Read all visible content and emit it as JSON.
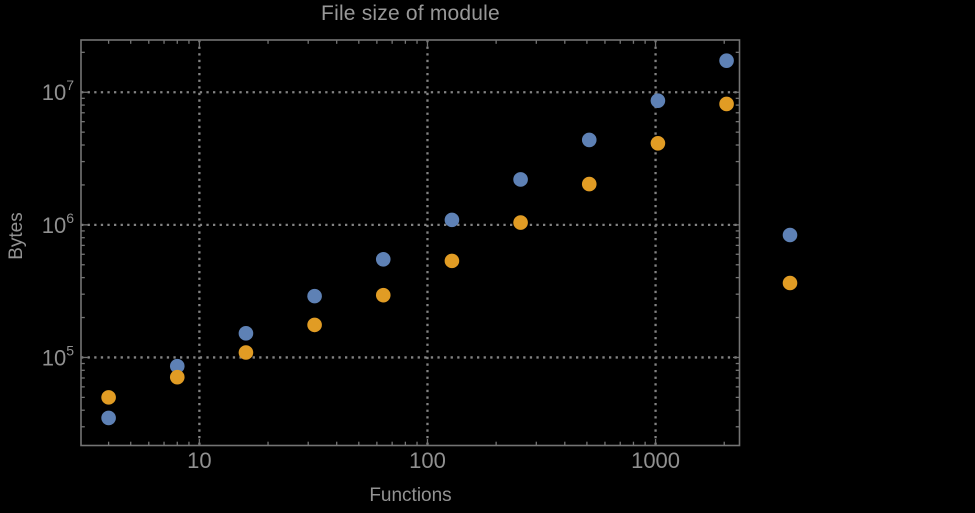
{
  "title": "File size of module",
  "axes": {
    "x_label": "Functions",
    "y_label": "Bytes"
  },
  "colors": {
    "background": "#000000",
    "frame": "#747474",
    "ticks": "#747474",
    "grid": "#828282",
    "tick_text": "#909090",
    "title_text": "#989898",
    "series_blue": "#5E81B5",
    "series_orange": "#E19C24"
  },
  "chart_data": {
    "type": "scatter",
    "title": "File size of module",
    "xlabel": "Functions",
    "ylabel": "Bytes",
    "x_scale": "log",
    "y_scale": "log",
    "xlim_log": [
      0.481,
      3.368
    ],
    "ylim_log": [
      4.336,
      7.394
    ],
    "grid": "dotted lines at major ticks only",
    "x_ticks": [
      {
        "value": 10,
        "label": "10"
      },
      {
        "value": 100,
        "label": "100"
      },
      {
        "value": 1000,
        "label": "1000"
      }
    ],
    "y_ticks": [
      {
        "value": 100000,
        "base": "10",
        "exp": "5"
      },
      {
        "value": 1000000,
        "base": "10",
        "exp": "6"
      },
      {
        "value": 10000000,
        "base": "10",
        "exp": "7"
      }
    ],
    "x": [
      4,
      8,
      16,
      32,
      64,
      128,
      256,
      512,
      1024,
      2048
    ],
    "series": [
      {
        "name": "series-blue",
        "color": "#5E81B5",
        "values": [
          35000,
          86000,
          152000,
          290000,
          550000,
          1090000,
          2200000,
          4370000,
          8640000,
          17300000
        ]
      },
      {
        "name": "series-orange",
        "color": "#E19C24",
        "values": [
          50000,
          71000,
          109000,
          176000,
          295000,
          535000,
          1040000,
          2030000,
          4120000,
          8160000
        ]
      }
    ],
    "legend": {
      "position": "right-outside",
      "entries": [
        {
          "color": "#5E81B5",
          "label": ""
        },
        {
          "color": "#E19C24",
          "label": ""
        }
      ]
    }
  }
}
